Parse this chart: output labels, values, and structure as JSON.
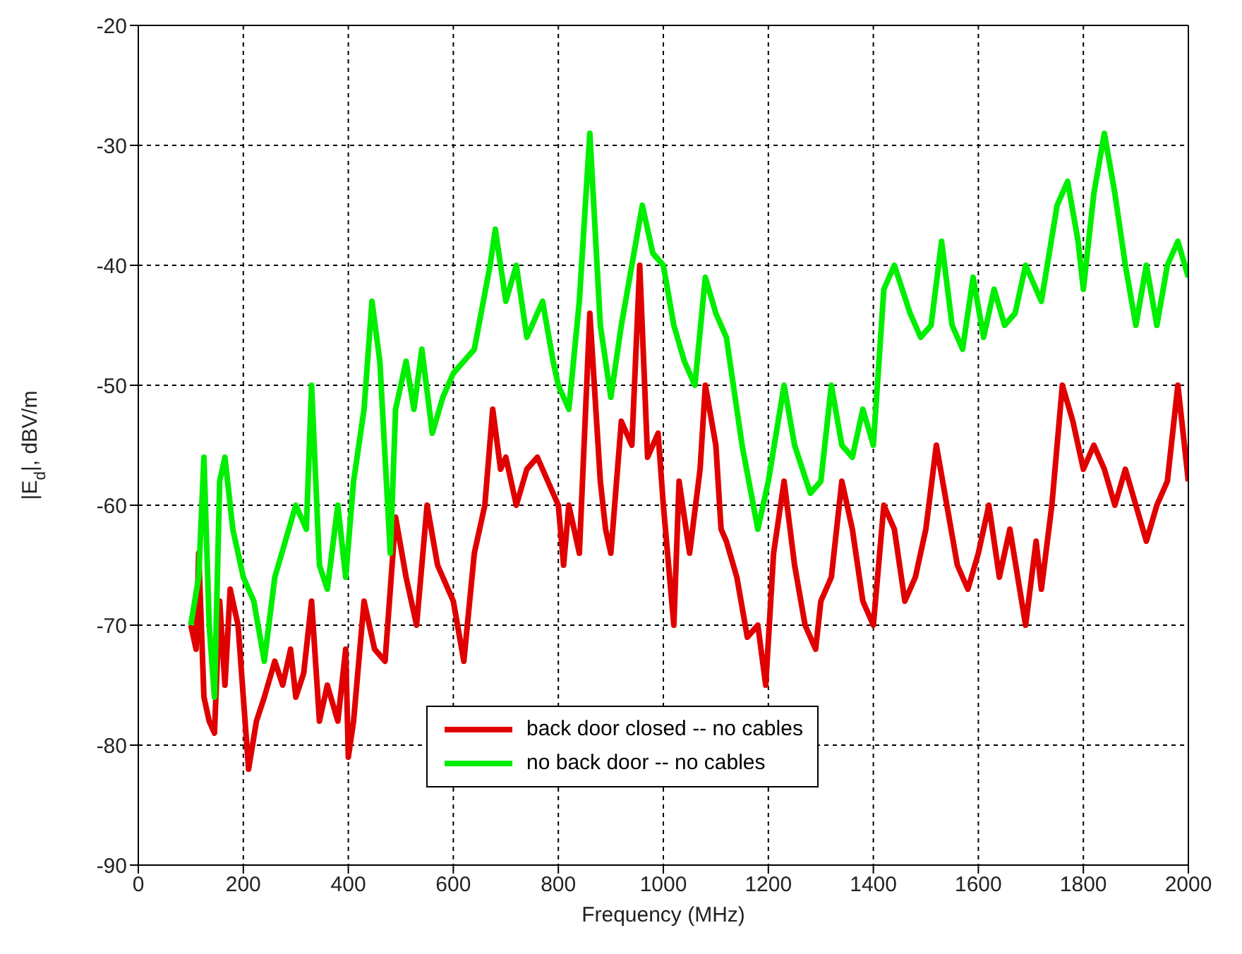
{
  "chart_data": {
    "type": "line",
    "xlabel": "Frequency (MHz)",
    "ylabel": "|E$_{d}$|, dBV/m",
    "xlim": [
      0,
      2000
    ],
    "xticks": [
      0,
      200,
      400,
      600,
      800,
      1000,
      1200,
      1400,
      1600,
      1800,
      2000
    ],
    "ylim": [
      -90,
      -20
    ],
    "yticks": [
      -90,
      -80,
      -70,
      -60,
      -50,
      -40,
      -30,
      -20
    ],
    "grid": true,
    "legend": "bottom",
    "marker": "none",
    "line_style": "solid",
    "series": [
      {
        "name": "back door closed -- no cables",
        "color": "#e00000",
        "x": [
          100,
          110,
          115,
          125,
          135,
          145,
          155,
          165,
          175,
          190,
          210,
          225,
          240,
          260,
          275,
          290,
          300,
          315,
          330,
          345,
          360,
          380,
          395,
          400,
          410,
          430,
          450,
          470,
          490,
          510,
          530,
          550,
          570,
          590,
          600,
          620,
          640,
          660,
          675,
          690,
          700,
          720,
          740,
          760,
          780,
          800,
          810,
          820,
          840,
          860,
          880,
          890,
          900,
          920,
          940,
          955,
          970,
          990,
          1000,
          1020,
          1030,
          1050,
          1070,
          1080,
          1100,
          1110,
          1120,
          1140,
          1160,
          1180,
          1195,
          1210,
          1230,
          1250,
          1270,
          1290,
          1300,
          1320,
          1340,
          1360,
          1380,
          1400,
          1420,
          1440,
          1460,
          1480,
          1500,
          1520,
          1540,
          1560,
          1580,
          1600,
          1620,
          1640,
          1660,
          1690,
          1710,
          1720,
          1740,
          1760,
          1780,
          1800,
          1820,
          1840,
          1860,
          1880,
          1900,
          1920,
          1940,
          1960,
          1980,
          2000
        ],
        "values": [
          -70,
          -72,
          -64,
          -76,
          -78,
          -79,
          -68,
          -75,
          -67,
          -70,
          -82,
          -78,
          -76,
          -73,
          -75,
          -72,
          -76,
          -74,
          -68,
          -78,
          -75,
          -78,
          -72,
          -81,
          -78,
          -68,
          -72,
          -73,
          -61,
          -66,
          -70,
          -60,
          -65,
          -67,
          -68,
          -73,
          -64,
          -60,
          -52,
          -57,
          -56,
          -60,
          -57,
          -56,
          -58,
          -60,
          -65,
          -60,
          -64,
          -44,
          -58,
          -62,
          -64,
          -53,
          -55,
          -40,
          -56,
          -54,
          -60,
          -70,
          -58,
          -64,
          -57,
          -50,
          -55,
          -62,
          -63,
          -66,
          -71,
          -70,
          -75,
          -64,
          -58,
          -65,
          -70,
          -72,
          -68,
          -66,
          -58,
          -62,
          -68,
          -70,
          -60,
          -62,
          -68,
          -66,
          -62,
          -55,
          -60,
          -65,
          -67,
          -64,
          -60,
          -66,
          -62,
          -70,
          -63,
          -67,
          -60,
          -50,
          -53,
          -57,
          -55,
          -57,
          -60,
          -57,
          -60,
          -63,
          -60,
          -58,
          -50,
          -58
        ]
      },
      {
        "name": "no back door -- no cables",
        "color": "#00ee00",
        "x": [
          100,
          115,
          125,
          135,
          145,
          155,
          165,
          180,
          200,
          220,
          240,
          260,
          280,
          300,
          320,
          330,
          345,
          360,
          380,
          395,
          410,
          430,
          445,
          460,
          480,
          490,
          510,
          525,
          540,
          560,
          580,
          600,
          640,
          670,
          680,
          700,
          720,
          740,
          770,
          790,
          800,
          820,
          840,
          860,
          880,
          900,
          920,
          940,
          960,
          980,
          1000,
          1020,
          1040,
          1060,
          1080,
          1100,
          1120,
          1150,
          1180,
          1200,
          1230,
          1250,
          1280,
          1300,
          1320,
          1340,
          1360,
          1380,
          1400,
          1420,
          1440,
          1470,
          1490,
          1510,
          1530,
          1550,
          1570,
          1590,
          1610,
          1630,
          1650,
          1670,
          1690,
          1720,
          1750,
          1770,
          1790,
          1800,
          1820,
          1840,
          1860,
          1880,
          1900,
          1920,
          1940,
          1960,
          1980,
          2000
        ],
        "values": [
          -70,
          -66,
          -56,
          -70,
          -76,
          -58,
          -56,
          -62,
          -66,
          -68,
          -73,
          -66,
          -63,
          -60,
          -62,
          -50,
          -65,
          -67,
          -60,
          -66,
          -58,
          -52,
          -43,
          -48,
          -64,
          -52,
          -48,
          -52,
          -47,
          -54,
          -51,
          -49,
          -47,
          -40,
          -37,
          -43,
          -40,
          -46,
          -43,
          -48,
          -50,
          -52,
          -43,
          -29,
          -45,
          -51,
          -45,
          -40,
          -35,
          -39,
          -40,
          -45,
          -48,
          -50,
          -41,
          -44,
          -46,
          -55,
          -62,
          -58,
          -50,
          -55,
          -59,
          -58,
          -50,
          -55,
          -56,
          -52,
          -55,
          -42,
          -40,
          -44,
          -46,
          -45,
          -38,
          -45,
          -47,
          -41,
          -46,
          -42,
          -45,
          -44,
          -40,
          -43,
          -35,
          -33,
          -38,
          -42,
          -34,
          -29,
          -34,
          -40,
          -45,
          -40,
          -45,
          -40,
          -38,
          -41
        ]
      }
    ]
  }
}
